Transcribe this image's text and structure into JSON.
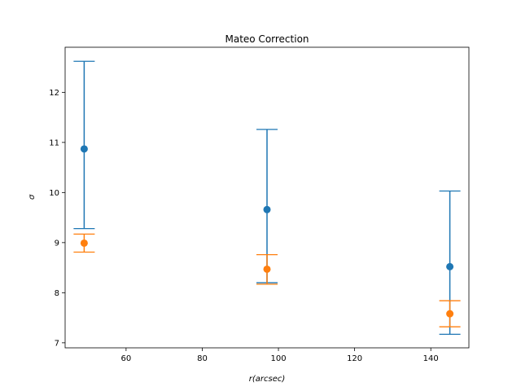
{
  "chart_data": {
    "type": "scatter",
    "title": "Mateo Correction",
    "xlabel": "r(arcsec)",
    "ylabel": "σ",
    "xlim": [
      44,
      150
    ],
    "ylim": [
      6.9,
      12.9
    ],
    "xticks": [
      60,
      80,
      100,
      120,
      140
    ],
    "yticks": [
      7,
      8,
      9,
      10,
      11,
      12
    ],
    "grid": false,
    "series": [
      {
        "color": "#1f77b4",
        "points": [
          {
            "x": 49,
            "y": 10.87,
            "ylow": 9.28,
            "yhigh": 12.62
          },
          {
            "x": 97,
            "y": 9.66,
            "ylow": 8.2,
            "yhigh": 11.26
          },
          {
            "x": 145,
            "y": 8.52,
            "ylow": 7.17,
            "yhigh": 10.03
          }
        ]
      },
      {
        "color": "#ff7f0e",
        "points": [
          {
            "x": 49,
            "y": 8.99,
            "ylow": 8.81,
            "yhigh": 9.17
          },
          {
            "x": 97,
            "y": 8.47,
            "ylow": 8.17,
            "yhigh": 8.76
          },
          {
            "x": 145,
            "y": 7.58,
            "ylow": 7.32,
            "yhigh": 7.84
          }
        ]
      }
    ]
  }
}
